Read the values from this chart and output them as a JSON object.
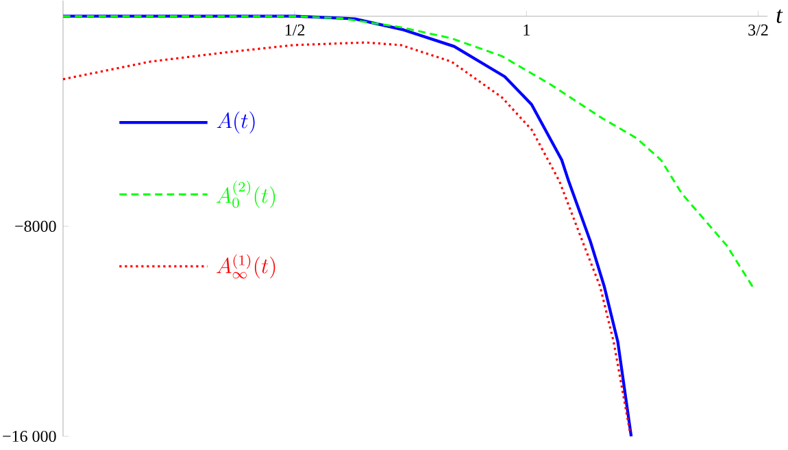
{
  "chart_data": {
    "type": "line",
    "xlabel": "t",
    "xlim": [
      0,
      1.52
    ],
    "ylim": [
      -16000,
      600
    ],
    "xticks": [
      {
        "value": 0.5,
        "label": "1/2"
      },
      1,
      {
        "value": 1.5,
        "label": "3/2"
      }
    ],
    "yticks": [
      {
        "value": -8000,
        "label": "−8000"
      },
      {
        "value": -16000,
        "label": "−16 000"
      }
    ],
    "legend": "left",
    "series": [
      {
        "name": "A(t)",
        "color": "#0000ff",
        "line_style": "solid",
        "x": [
          0,
          0.25,
          0.5,
          0.63,
          0.735,
          0.844,
          0.953,
          1.011,
          1.076,
          1.091,
          1.138,
          1.168,
          1.197,
          1.226
        ],
        "values": [
          0,
          0,
          0,
          -100,
          -520,
          -1150,
          -2300,
          -3360,
          -5470,
          -6280,
          -8580,
          -10300,
          -12390,
          -16000
        ]
      },
      {
        "name": "A_0^{(2)}(t)",
        "color": "#00ff00",
        "line_style": "dashed",
        "x": [
          0,
          0.25,
          0.5,
          0.6,
          0.729,
          0.838,
          0.947,
          1.053,
          1.162,
          1.238,
          1.291,
          1.335,
          1.432,
          1.488
        ],
        "values": [
          0,
          0,
          0,
          -80,
          -420,
          -840,
          -1520,
          -2610,
          -3870,
          -4650,
          -5490,
          -6750,
          -8730,
          -10300
        ]
      },
      {
        "name": "A_\\infty^{(1)}(t)",
        "color": "#ff0000",
        "line_style": "dotted",
        "x": [
          0,
          0.188,
          0.35,
          0.497,
          0.653,
          0.729,
          0.838,
          0.947,
          1.012,
          1.071,
          1.121,
          1.159,
          1.188,
          1.224
        ],
        "values": [
          -2400,
          -1730,
          -1380,
          -1100,
          -1000,
          -1100,
          -1730,
          -3090,
          -4340,
          -6280,
          -8580,
          -10300,
          -12390,
          -15900
        ]
      }
    ]
  }
}
